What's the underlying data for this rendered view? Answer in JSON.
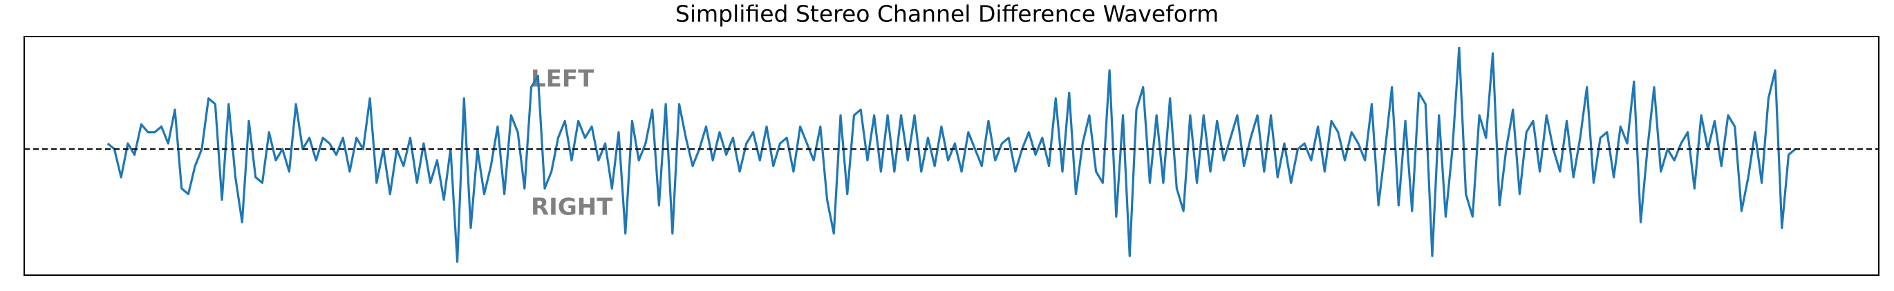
{
  "chart_data": {
    "type": "line",
    "title": "Simplified Stereo Channel Difference Waveform",
    "annotations": [
      "LEFT",
      "RIGHT"
    ],
    "ylim": [
      -1.12,
      1.0
    ],
    "hline": 0,
    "color": "#1f77b4",
    "values": [
      0.05,
      0.0,
      -0.25,
      0.05,
      -0.05,
      0.22,
      0.15,
      0.15,
      0.2,
      0.05,
      0.35,
      -0.35,
      -0.4,
      -0.15,
      0.0,
      0.45,
      0.4,
      -0.45,
      0.4,
      -0.25,
      -0.65,
      0.25,
      -0.25,
      -0.3,
      0.15,
      -0.1,
      0.0,
      -0.2,
      0.4,
      0.0,
      0.1,
      -0.1,
      0.1,
      0.05,
      -0.05,
      0.1,
      -0.2,
      0.1,
      0.0,
      0.45,
      -0.3,
      0.0,
      -0.4,
      0.0,
      -0.15,
      0.1,
      -0.3,
      0.05,
      -0.3,
      -0.1,
      -0.45,
      0.0,
      -1.0,
      0.45,
      -0.7,
      0.0,
      -0.4,
      -0.15,
      0.2,
      -0.4,
      0.3,
      0.15,
      -0.35,
      0.55,
      0.65,
      -0.35,
      -0.2,
      0.1,
      0.25,
      -0.1,
      0.25,
      0.1,
      0.2,
      -0.1,
      0.05,
      -0.35,
      0.15,
      -0.75,
      0.25,
      -0.1,
      0.05,
      0.35,
      -0.5,
      0.4,
      -0.75,
      0.4,
      0.1,
      -0.15,
      0.0,
      0.2,
      -0.1,
      0.15,
      -0.05,
      0.1,
      -0.2,
      0.05,
      0.15,
      -0.1,
      0.2,
      -0.15,
      0.05,
      0.1,
      -0.2,
      0.2,
      0.05,
      -0.1,
      0.2,
      -0.45,
      -0.75,
      0.3,
      -0.4,
      0.3,
      0.35,
      -0.1,
      0.3,
      -0.2,
      0.3,
      -0.2,
      0.3,
      -0.1,
      0.3,
      -0.2,
      0.1,
      -0.15,
      0.2,
      -0.1,
      0.05,
      -0.2,
      0.15,
      0.0,
      -0.15,
      0.25,
      -0.1,
      0.05,
      0.1,
      -0.2,
      0.0,
      0.15,
      -0.05,
      0.1,
      -0.15,
      0.45,
      -0.2,
      0.5,
      -0.4,
      0.05,
      0.3,
      -0.2,
      -0.3,
      0.7,
      -0.6,
      0.3,
      -0.95,
      0.35,
      0.55,
      -0.3,
      0.3,
      -0.3,
      0.45,
      -0.35,
      -0.55,
      0.3,
      -0.3,
      0.3,
      -0.2,
      0.25,
      -0.1,
      0.1,
      0.3,
      -0.15,
      0.1,
      0.3,
      -0.2,
      0.3,
      -0.25,
      0.05,
      -0.3,
      0.0,
      0.05,
      -0.1,
      0.2,
      -0.2,
      0.25,
      0.15,
      -0.1,
      0.15,
      0.05,
      -0.1,
      0.4,
      -0.5,
      0.0,
      0.55,
      -0.5,
      0.25,
      -0.55,
      0.5,
      0.4,
      -0.95,
      0.3,
      -0.6,
      0.0,
      0.9,
      -0.4,
      -0.6,
      0.3,
      0.1,
      0.85,
      -0.5,
      0.0,
      0.35,
      -0.4,
      0.15,
      0.25,
      -0.2,
      0.3,
      0.0,
      -0.2,
      0.25,
      -0.25,
      0.1,
      0.55,
      -0.3,
      0.1,
      0.15,
      -0.25,
      0.2,
      0.05,
      0.6,
      -0.65,
      0.0,
      0.55,
      -0.2,
      0.0,
      -0.1,
      0.05,
      0.15,
      -0.35,
      0.3,
      0.0,
      0.25,
      -0.15,
      0.3,
      0.2,
      -0.55,
      -0.25,
      0.15,
      -0.3,
      0.45,
      0.7,
      -0.7,
      -0.05,
      0.0
    ]
  }
}
